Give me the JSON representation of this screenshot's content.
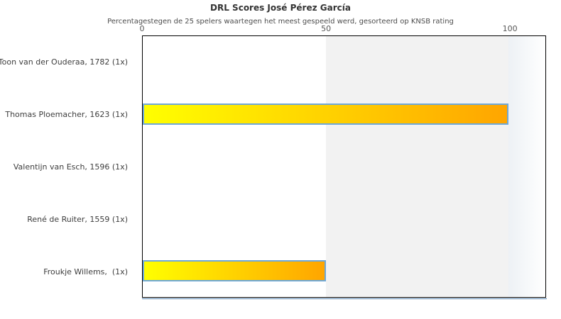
{
  "chart": {
    "title": "DRL Scores José Pérez García",
    "subtitle": "Percentagestegen de 25 spelers waartegen het meest gespeeld werd, gesorteerd op KNSB rating"
  },
  "chart_data": {
    "type": "bar",
    "orientation": "horizontal",
    "title": "DRL Scores José Pérez García",
    "subtitle": "Percentagestegen de 25 spelers waartegen het meest gespeeld werd, gesorteerd op KNSB rating",
    "categories": [
      "Toon van der Ouderaa, 1782 (1x)",
      "Thomas Ploemacher, 1623 (1x)",
      "Valentijn van Esch, 1596 (1x)",
      "René de Ruiter, 1559 (1x)",
      "Froukje Willems,  (1x)"
    ],
    "values": [
      0,
      100,
      0,
      0,
      50
    ],
    "xlabel": "",
    "ylabel": "",
    "xlim": [
      0,
      110
    ],
    "xticks": [
      0,
      50,
      100
    ],
    "grid": false,
    "legend": "none",
    "axis_position": "top",
    "background_bands": [
      {
        "from": 50,
        "to": 100,
        "color": "#f2f2f2"
      },
      {
        "from": 100,
        "to": 110,
        "gradient": [
          "#edf1f5",
          "#ffffff"
        ]
      }
    ]
  },
  "colors": {
    "bar_gradient_start": "#ffff00",
    "bar_gradient_end": "#ffa500",
    "bar_border": "#6fa8d8",
    "plot_frame": "#000000",
    "baseline": "#4d7ba7",
    "band_gray": "#f2f2f2",
    "background": "#ffffff"
  }
}
